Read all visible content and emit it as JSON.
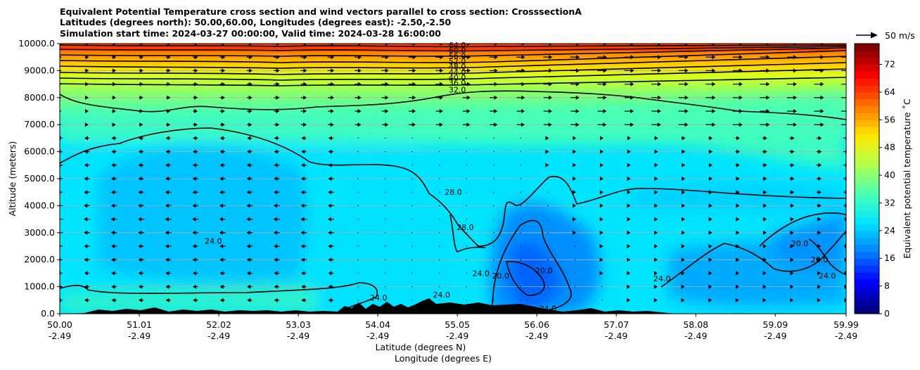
{
  "chart_data": {
    "type": "contour",
    "title_lines": [
      "Equivalent Potential Temperature cross section and wind vectors parallel to cross section: CrosssectionA",
      "Latitudes (degrees north): 50.00,60.00, Longitudes (degrees east): -2.50,-2.50",
      "Simulation start time: 2024-03-27 00:00:00, Valid time: 2024-03-28 16:00:00"
    ],
    "ylabel": "Altitude (meters)",
    "xlabel": "Latitude (degrees N)",
    "xlabel2": "Longitude (degrees E)",
    "ylim": [
      0,
      10000
    ],
    "xlim": [
      50.0,
      59.99
    ],
    "x_ticks": [
      {
        "lat": "50.00",
        "lon": "-2.49"
      },
      {
        "lat": "51.01",
        "lon": "-2.49"
      },
      {
        "lat": "52.02",
        "lon": "-2.49"
      },
      {
        "lat": "53.03",
        "lon": "-2.49"
      },
      {
        "lat": "54.04",
        "lon": "-2.49"
      },
      {
        "lat": "55.05",
        "lon": "-2.49"
      },
      {
        "lat": "56.06",
        "lon": "-2.49"
      },
      {
        "lat": "57.07",
        "lon": "-2.49"
      },
      {
        "lat": "58.08",
        "lon": "-2.49"
      },
      {
        "lat": "59.09",
        "lon": "-2.49"
      },
      {
        "lat": "59.99",
        "lon": "-2.49"
      }
    ],
    "y_ticks": [
      "0.0",
      "1000.0",
      "2000.0",
      "3000.0",
      "4000.0",
      "5000.0",
      "6000.0",
      "7000.0",
      "8000.0",
      "9000.0",
      "10000.0"
    ],
    "grid": "horizontal",
    "colorbar": {
      "label": "Equivalent potential temperature ˚C",
      "ticks": [
        "0",
        "8",
        "16",
        "24",
        "32",
        "40",
        "48",
        "56",
        "64",
        "72"
      ],
      "range": [
        0,
        78
      ]
    },
    "wind_key": {
      "label": "50 m/s"
    },
    "contour_labels": [
      {
        "text": "64.0",
        "lat": 55.05,
        "alt": 9950
      },
      {
        "text": "60.0",
        "lat": 55.05,
        "alt": 9750
      },
      {
        "text": "56.0",
        "lat": 55.05,
        "alt": 9550
      },
      {
        "text": "52.0",
        "lat": 55.05,
        "alt": 9350
      },
      {
        "text": "48.0",
        "lat": 55.05,
        "alt": 9150
      },
      {
        "text": "44.0",
        "lat": 55.05,
        "alt": 8950
      },
      {
        "text": "40.0",
        "lat": 55.05,
        "alt": 8750
      },
      {
        "text": "36.0",
        "lat": 55.05,
        "alt": 8550
      },
      {
        "text": "32.0",
        "lat": 55.05,
        "alt": 8300
      },
      {
        "text": "28.0",
        "lat": 55.0,
        "alt": 4500
      },
      {
        "text": "28.0",
        "lat": 55.15,
        "alt": 3200
      },
      {
        "text": "24.0",
        "lat": 51.95,
        "alt": 2700
      },
      {
        "text": "24.0",
        "lat": 54.05,
        "alt": 600
      },
      {
        "text": "24.0",
        "lat": 54.85,
        "alt": 700
      },
      {
        "text": "24.0",
        "lat": 55.35,
        "alt": 1500
      },
      {
        "text": "20.0",
        "lat": 55.6,
        "alt": 1400
      },
      {
        "text": "20.0",
        "lat": 56.15,
        "alt": 1600
      },
      {
        "text": "24.0",
        "lat": 56.2,
        "alt": 200
      },
      {
        "text": "24.0",
        "lat": 57.65,
        "alt": 1300
      },
      {
        "text": "20.0",
        "lat": 59.4,
        "alt": 2600
      },
      {
        "text": "20.0",
        "lat": 59.65,
        "alt": 2000
      },
      {
        "text": "24.0",
        "lat": 59.75,
        "alt": 1400
      }
    ]
  }
}
